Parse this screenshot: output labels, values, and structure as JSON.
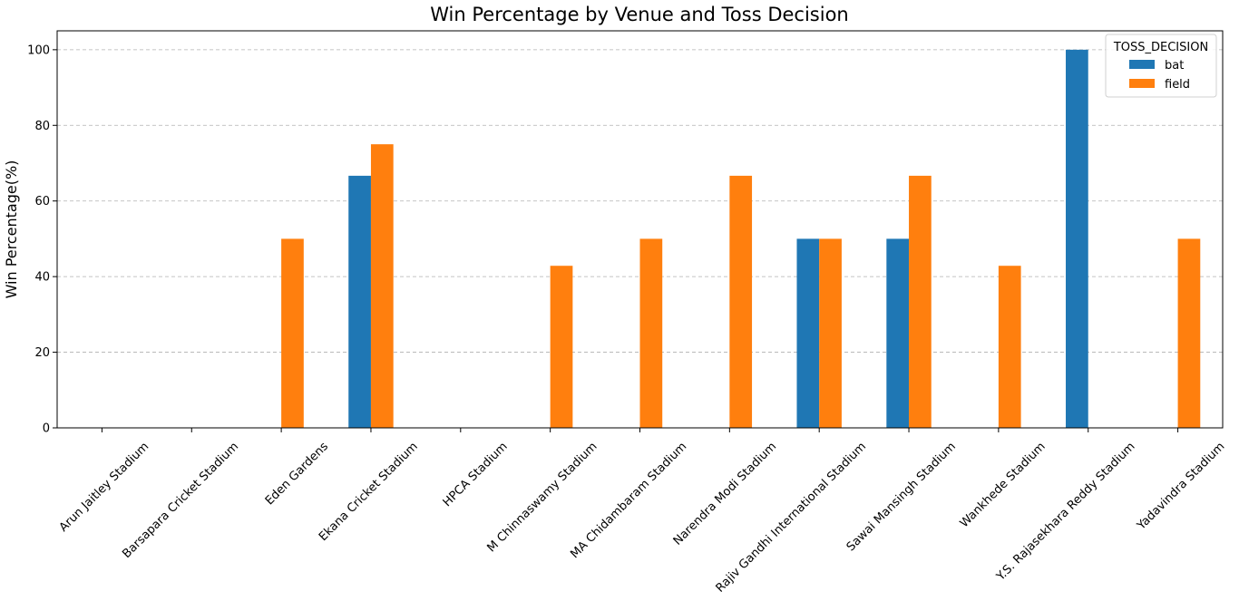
{
  "chart_data": {
    "type": "bar",
    "title": "Win Percentage by Venue and Toss Decision",
    "xlabel": "",
    "ylabel": "Win Percentage(%)",
    "ylim": [
      0,
      105
    ],
    "yticks": [
      0,
      20,
      40,
      60,
      80,
      100
    ],
    "grid": "y-dashed",
    "categories": [
      "Arun Jaitley Stadium",
      "Barsapara Cricket Stadium",
      "Eden Gardens",
      "Ekana Cricket Stadium",
      "HPCA Stadium",
      "M Chinnaswamy Stadium",
      "MA Chidambaram Stadium",
      "Narendra Modi Stadium",
      "Rajiv Gandhi International Stadium",
      "Sawai Mansingh Stadium",
      "Wankhede Stadium",
      "Y.S. Rajasekhara Reddy Stadium",
      "Yadavindra Stadium"
    ],
    "series": [
      {
        "name": "bat",
        "color": "#1f77b4",
        "values": [
          0,
          0,
          0,
          66.67,
          0,
          0,
          0,
          0,
          50,
          50,
          0,
          100,
          0
        ]
      },
      {
        "name": "field",
        "color": "#ff7f0e",
        "values": [
          0,
          0,
          50,
          75,
          0,
          42.86,
          50,
          66.67,
          50,
          66.67,
          42.86,
          0,
          50
        ]
      }
    ],
    "legend": {
      "title": "TOSS_DECISION",
      "placement": "top-right"
    }
  }
}
